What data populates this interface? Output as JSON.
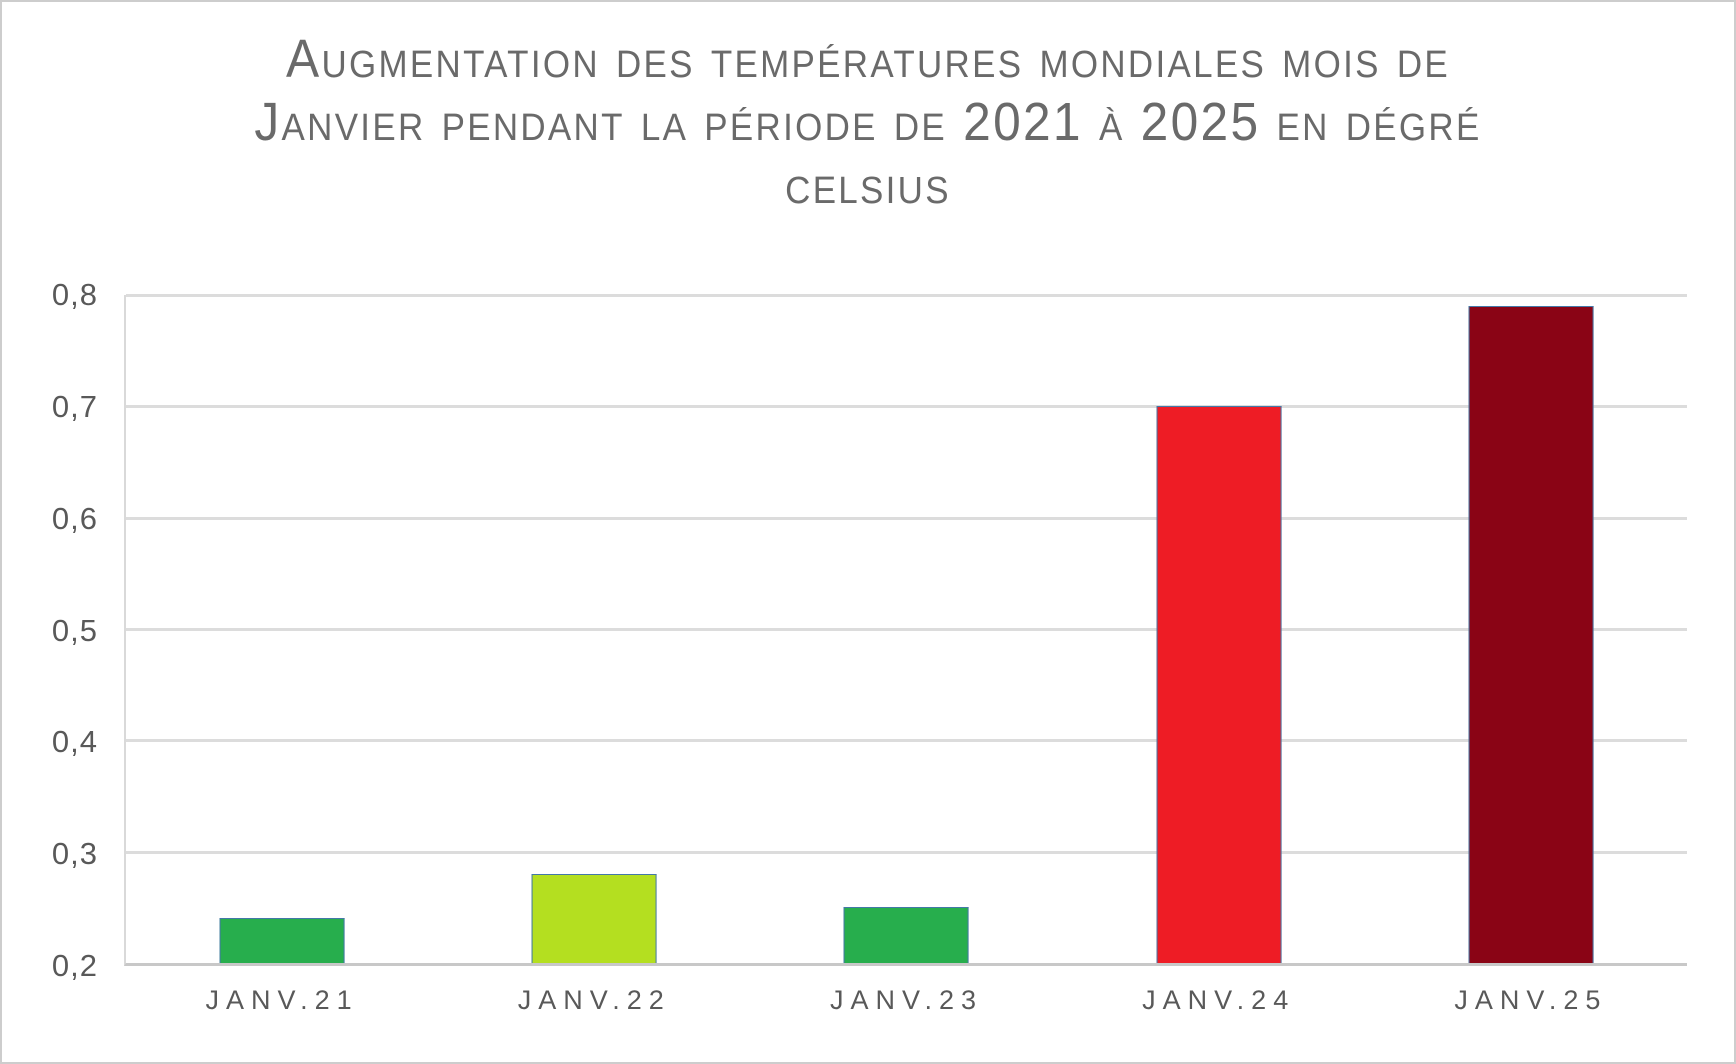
{
  "chart_data": {
    "type": "bar",
    "title": "Augmentation des températures mondiales mois de Janvier pendant la période de 2021 à 2025 en dégré celsius",
    "title_lines": [
      "Augmentation des températures mondiales mois de",
      "Janvier pendant la période de 2021 à 2025 en dégré",
      "celsius"
    ],
    "categories": [
      "JANV.21",
      "JANV.22",
      "JANV.23",
      "JANV.24",
      "JANV.25"
    ],
    "values": [
      0.24,
      0.28,
      0.25,
      0.7,
      0.79
    ],
    "unit": "°C",
    "bar_colors": [
      "#27ae4d",
      "#b4df20",
      "#27ae4d",
      "#ee1c25",
      "#8a0415"
    ],
    "bar_border_color": "#4478a8",
    "ylim": [
      0.2,
      0.8
    ],
    "yticks": [
      0.8,
      0.7,
      0.6,
      0.5,
      0.4,
      0.3,
      0.2
    ],
    "ytick_labels": [
      "0,8",
      "0,7",
      "0,6",
      "0,5",
      "0,4",
      "0,3",
      "0,2"
    ],
    "xlabel": "",
    "ylabel": "",
    "grid": true,
    "legend": false,
    "gridline_color": "#dcdcdc",
    "axis_line_color": "#c8c8c8",
    "text_color": "#595959",
    "title_color": "#6a6a6a"
  }
}
